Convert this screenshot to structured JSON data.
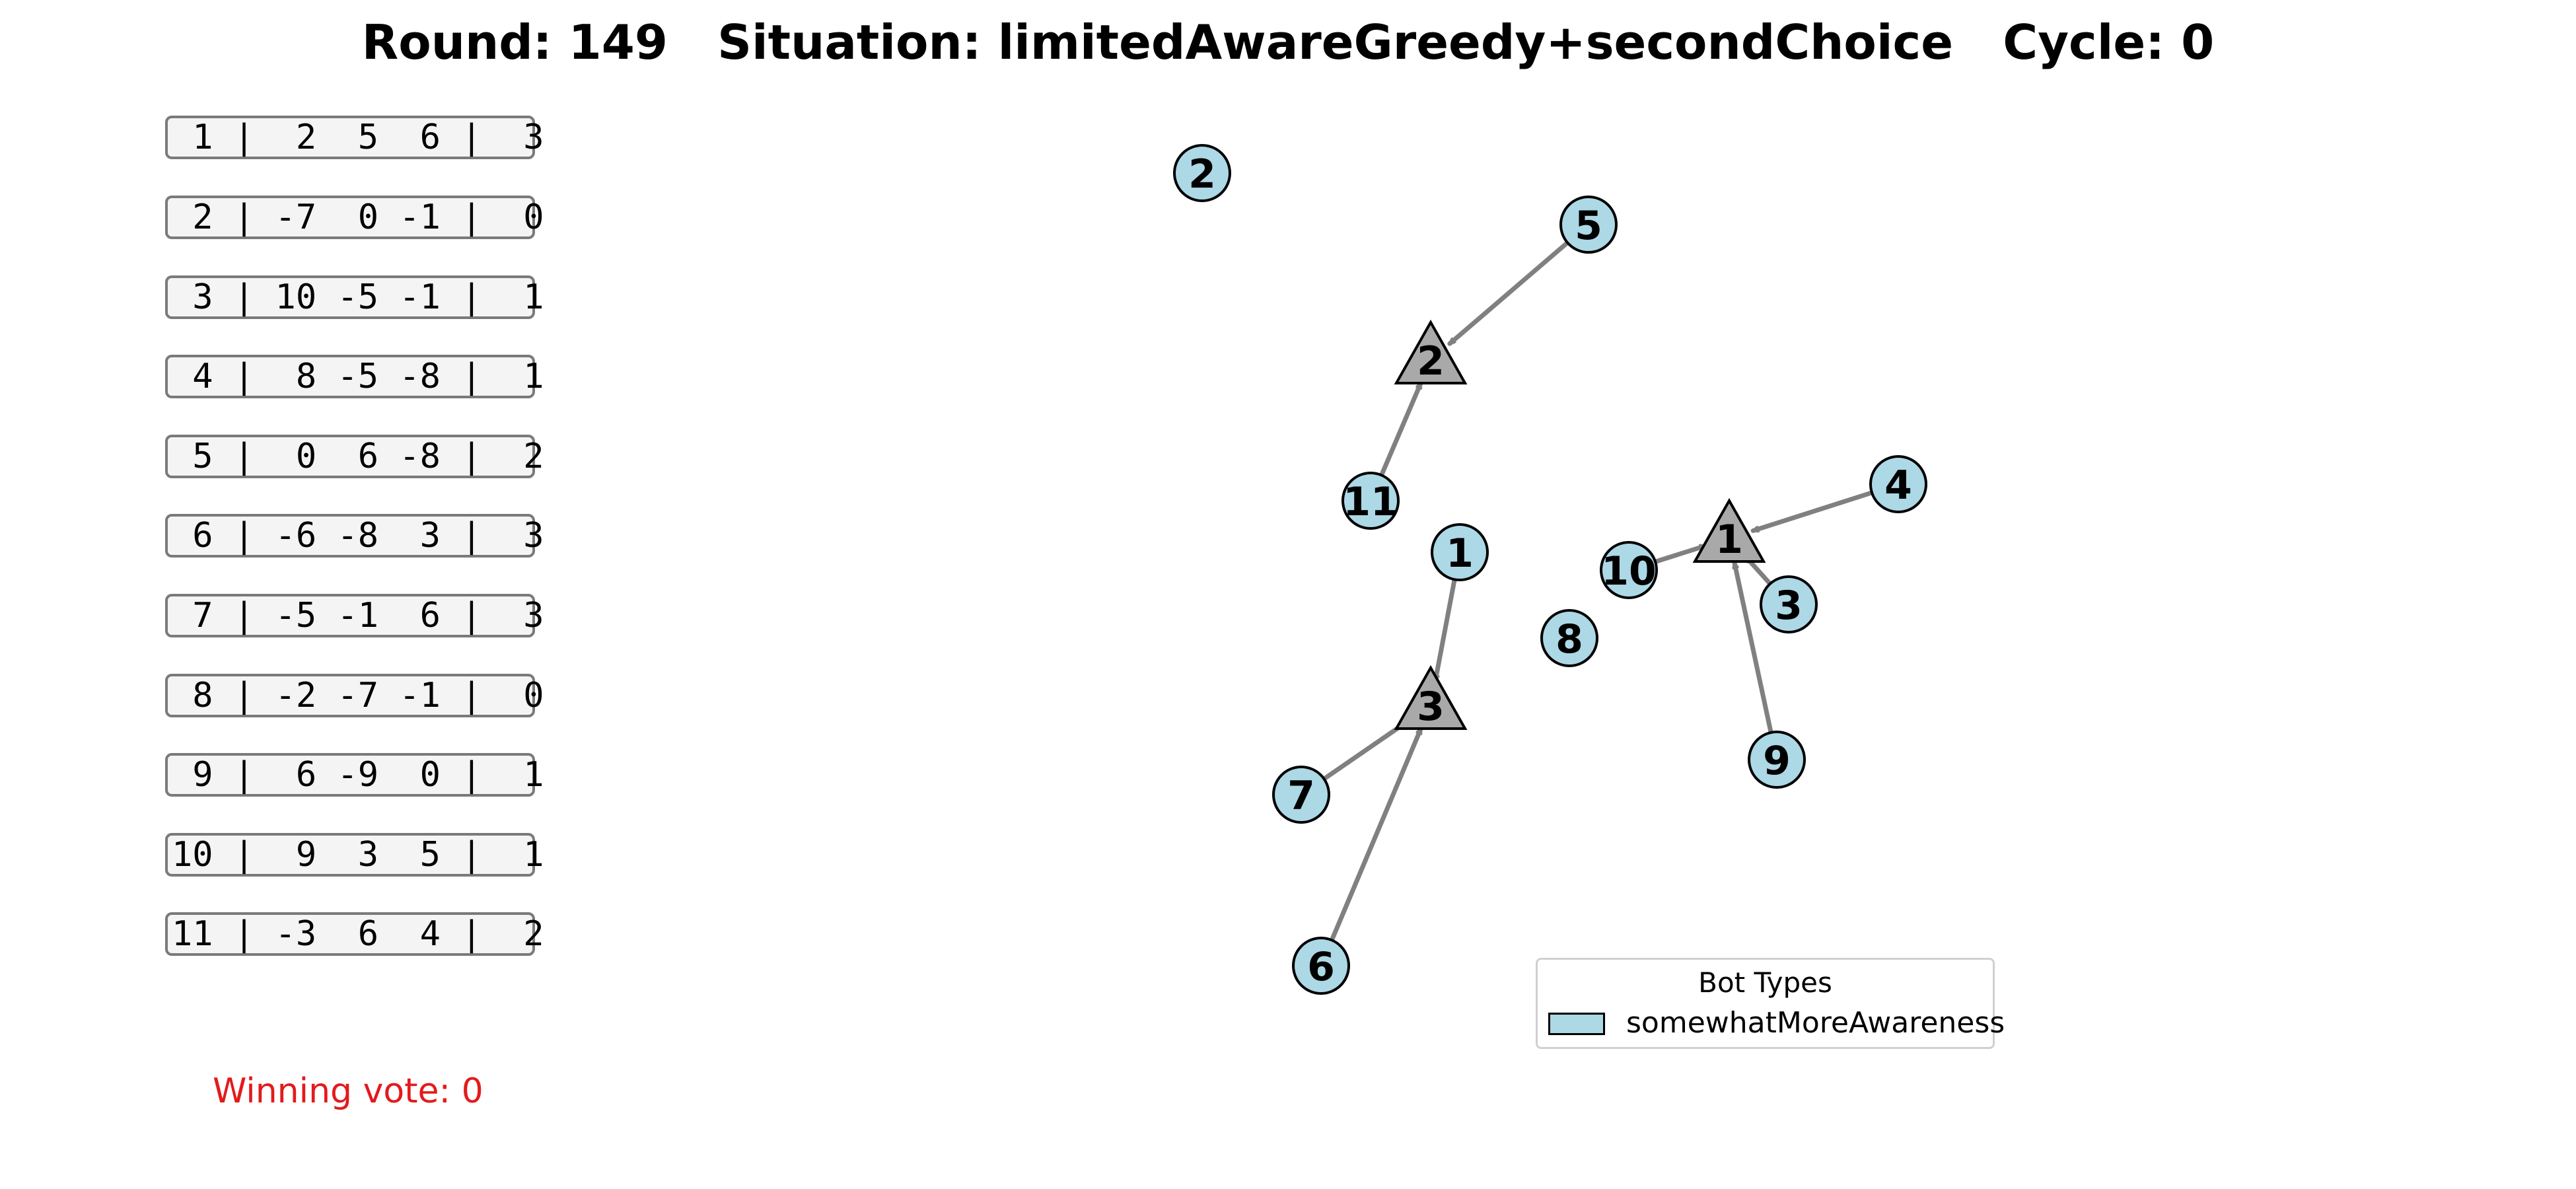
{
  "header": {
    "round": "Round: 149",
    "situation": "Situation: limitedAwareGreedy+secondChoice",
    "cycle": "Cycle: 0"
  },
  "rows": [
    " 1 |  2  5  6 |  3",
    " 2 | -7  0 -1 |  0",
    " 3 | 10 -5 -1 |  1",
    " 4 |  8 -5 -8 |  1",
    " 5 |  0  6 -8 |  2",
    " 6 | -6 -8  3 |  3",
    " 7 | -5 -1  6 |  3",
    " 8 | -2 -7 -1 |  0",
    " 9 |  6 -9  0 |  1",
    "10 |  9  3  5 |  1",
    "11 | -3  6  4 |  2"
  ],
  "winning_vote": "Winning vote: 0",
  "legend": {
    "title": "Bot Types",
    "label": "somewhatMoreAwareness"
  },
  "colors": {
    "bot_fill": "#add8e6",
    "option_fill": "#a9a9a9",
    "edge": "#808080",
    "winning_text": "#e31a1c"
  },
  "graph": {
    "options": [
      {
        "id": "1"
      },
      {
        "id": "2"
      },
      {
        "id": "3"
      }
    ],
    "bots": [
      {
        "id": "1",
        "choice": "3"
      },
      {
        "id": "2",
        "choice": null
      },
      {
        "id": "3",
        "choice": "1"
      },
      {
        "id": "4",
        "choice": "1"
      },
      {
        "id": "5",
        "choice": "2"
      },
      {
        "id": "6",
        "choice": "3"
      },
      {
        "id": "7",
        "choice": "3"
      },
      {
        "id": "8",
        "choice": null
      },
      {
        "id": "9",
        "choice": "1"
      },
      {
        "id": "10",
        "choice": "1"
      },
      {
        "id": "11",
        "choice": "2"
      }
    ]
  }
}
